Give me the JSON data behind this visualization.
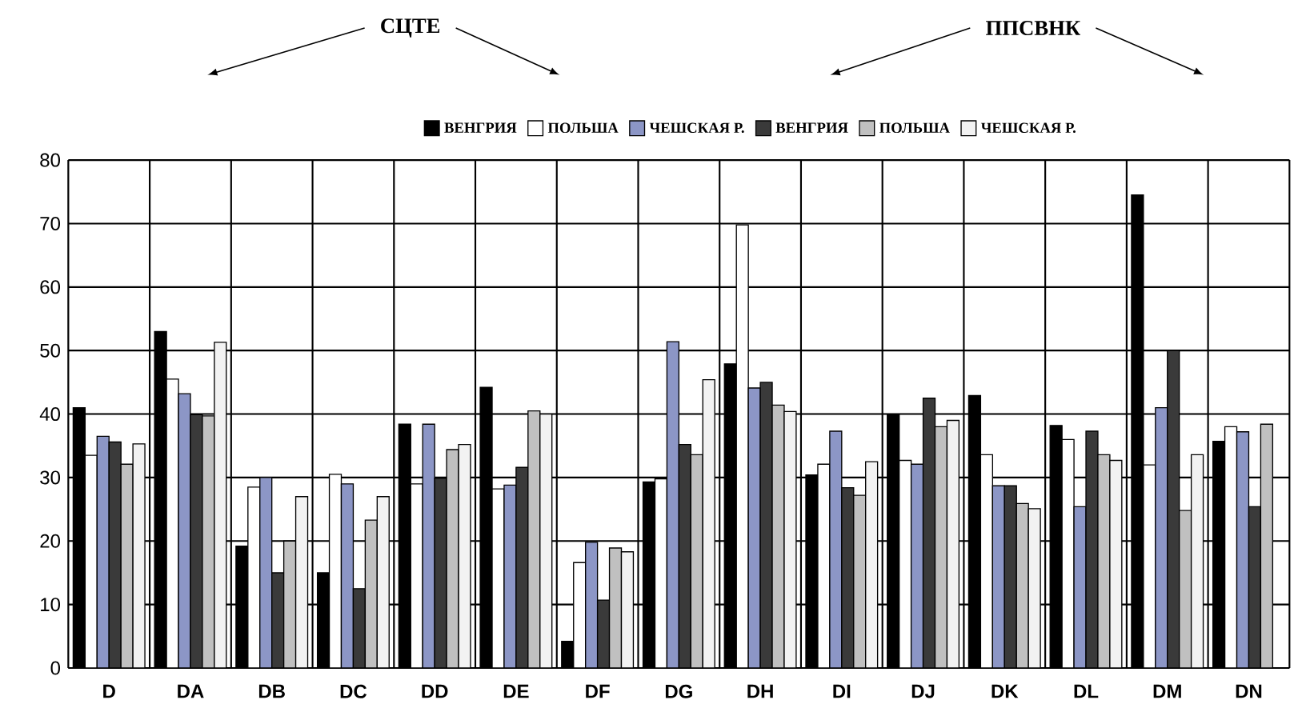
{
  "chart_data": {
    "type": "bar",
    "categories": [
      "D",
      "DA",
      "DB",
      "DC",
      "DD",
      "DE",
      "DF",
      "DG",
      "DH",
      "DI",
      "DJ",
      "DK",
      "DL",
      "DM",
      "DN"
    ],
    "series": [
      {
        "name": "ВЕНГРИЯ",
        "color": "#000000",
        "values": [
          41,
          53,
          19.2,
          15,
          38.4,
          44.2,
          4.2,
          29.3,
          47.9,
          30.4,
          40,
          42.9,
          38.2,
          74.5,
          35.7
        ]
      },
      {
        "name": "ПОЛЬША",
        "color": "#ffffff",
        "values": [
          33.5,
          45.5,
          28.5,
          30.5,
          29,
          28.2,
          16.6,
          29.8,
          69.8,
          32.1,
          32.7,
          33.6,
          36,
          32,
          38
        ]
      },
      {
        "name": "ЧЕШСКАЯ Р.",
        "color": "#8c96c6",
        "values": [
          36.5,
          43.2,
          30,
          29,
          38.4,
          28.8,
          19.8,
          51.4,
          44.1,
          37.3,
          32.1,
          28.7,
          25.4,
          41,
          37.2
        ]
      },
      {
        "name": "ВЕНГРИЯ",
        "color": "#3a3a3a",
        "values": [
          35.6,
          39.9,
          15,
          12.5,
          29.9,
          31.6,
          10.7,
          35.2,
          45,
          28.4,
          42.5,
          28.7,
          37.3,
          50,
          25.4
        ]
      },
      {
        "name": "ПОЛЬША",
        "color": "#c0c0c0",
        "values": [
          32.1,
          39.7,
          20,
          23.3,
          34.4,
          40.5,
          18.9,
          33.6,
          41.4,
          27.2,
          38,
          25.9,
          33.6,
          24.8,
          38.4
        ]
      },
      {
        "name": "ЧЕШСКАЯ Р.",
        "color": "#f2f2f2",
        "values": [
          35.3,
          51.3,
          27,
          27,
          35.2,
          40,
          18.3,
          45.4,
          40.4,
          32.5,
          39,
          25.1,
          32.7,
          33.6,
          null
        ]
      }
    ],
    "annotations": [
      "СЦТЕ",
      "ППСВНК"
    ],
    "ylim": [
      0,
      80
    ],
    "yticks": [
      0,
      10,
      20,
      30,
      40,
      50,
      60,
      70,
      80
    ],
    "grid": true,
    "legend": "top"
  }
}
